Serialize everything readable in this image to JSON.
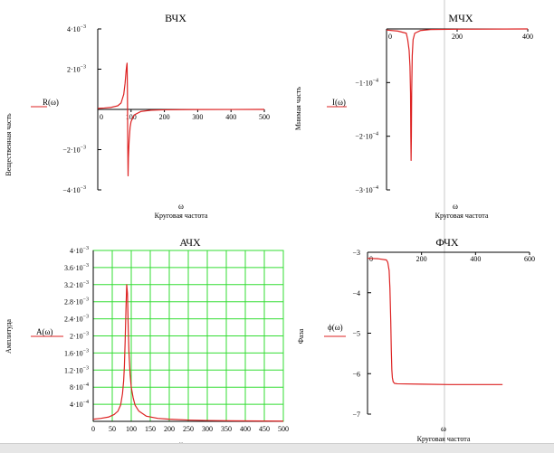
{
  "colors": {
    "curve": "#dd2222",
    "grid": "#33dd33",
    "axis": "#000000",
    "divider": "#c8c8c8"
  },
  "chart_data": [
    {
      "id": "vchx",
      "type": "line",
      "title": "ВЧХ",
      "xlabel": "Круговая частота",
      "xvar": "ω",
      "ylabel": "Вещественная часть",
      "legend": "R(ω)",
      "xlim": [
        0,
        500
      ],
      "ylim": [
        -0.004,
        0.004
      ],
      "x_ticks": [
        "0",
        "100",
        "200",
        "300",
        "400",
        "500"
      ],
      "y_ticks": [
        {
          "v": 0.004,
          "m": "4·10",
          "e": "−3"
        },
        {
          "v": 0.002,
          "m": "2·10",
          "e": "−3"
        },
        {
          "v": -0.002,
          "m": "−2·10",
          "e": "−3"
        },
        {
          "v": -0.004,
          "m": "−4·10",
          "e": "−3"
        }
      ],
      "grid": false,
      "series": [
        {
          "x": [
            0,
            20,
            40,
            60,
            70,
            78,
            82,
            85,
            87,
            88,
            89,
            90,
            91,
            92,
            94,
            97,
            100,
            110,
            130,
            160,
            200,
            250,
            300,
            400,
            500
          ],
          "y": [
            5e-05,
            7e-05,
            0.0001,
            0.00018,
            0.00032,
            0.00075,
            0.0013,
            0.0019,
            0.0022,
            0.0023,
            0.001,
            -0.0018,
            -0.0033,
            -0.0024,
            -0.0016,
            -0.0009,
            -0.0006,
            -0.00027,
            -0.0001,
            -4e-05,
            -2e-05,
            -1e-05,
            -5e-06,
            -2e-06,
            -1e-06
          ]
        }
      ]
    },
    {
      "id": "mchx",
      "type": "line",
      "title": "МЧХ",
      "xlabel": "Круговая частота",
      "xvar": "ω",
      "ylabel": "Мнимая часть",
      "legend": "I(ω)",
      "xlim": [
        0,
        500
      ],
      "ylim": [
        -0.0003,
        0
      ],
      "x_ticks": [
        "0",
        "200",
        "400"
      ],
      "y_ticks": [
        {
          "v": -0.0001,
          "m": "−1·10",
          "e": "−4"
        },
        {
          "v": -0.0002,
          "m": "−2·10",
          "e": "−4"
        },
        {
          "v": -0.0003,
          "m": "−3·10",
          "e": "−4"
        }
      ],
      "grid": false,
      "series": [
        {
          "x": [
            0,
            40,
            70,
            75,
            80,
            83,
            85,
            86,
            87,
            88,
            89,
            91,
            94,
            100,
            120,
            160,
            250,
            500
          ],
          "y": [
            -2e-06,
            -4e-06,
            -8e-06,
            -2e-05,
            -4e-05,
            -7e-05,
            -0.00012,
            -0.0002,
            -0.000245,
            -0.0002,
            -0.00012,
            -5e-05,
            -2e-05,
            -8e-06,
            -3e-06,
            -1e-06,
            -5e-07,
            0
          ]
        }
      ]
    },
    {
      "id": "achx",
      "type": "line",
      "title": "АЧХ",
      "xlabel": "",
      "xvar": "ω",
      "ylabel": "Амплитуда",
      "legend": "A(ω)",
      "xlim": [
        0,
        500
      ],
      "ylim": [
        0,
        0.004
      ],
      "x_ticks": [
        "0",
        "50",
        "100",
        "150",
        "200",
        "250",
        "300",
        "350",
        "400",
        "450",
        "500"
      ],
      "y_ticks": [
        {
          "v": 0.004,
          "m": "4·10",
          "e": "−3"
        },
        {
          "v": 0.0036,
          "m": "3.6·10",
          "e": "−3"
        },
        {
          "v": 0.0032,
          "m": "3.2·10",
          "e": "−3"
        },
        {
          "v": 0.0028,
          "m": "2.8·10",
          "e": "−3"
        },
        {
          "v": 0.0024,
          "m": "2.4·10",
          "e": "−3"
        },
        {
          "v": 0.002,
          "m": "2·10",
          "e": "−3"
        },
        {
          "v": 0.0016,
          "m": "1.6·10",
          "e": "−3"
        },
        {
          "v": 0.0012,
          "m": "1.2·10",
          "e": "−3"
        },
        {
          "v": 0.0008,
          "m": "8·10",
          "e": "−4"
        },
        {
          "v": 0.0004,
          "m": "4·10",
          "e": "−4"
        }
      ],
      "grid": true,
      "series": [
        {
          "x": [
            0,
            20,
            40,
            55,
            65,
            72,
            77,
            80,
            82,
            84,
            86,
            88,
            90,
            92,
            94,
            97,
            100,
            105,
            110,
            120,
            140,
            170,
            200,
            250,
            300,
            400,
            500
          ],
          "y": [
            5e-05,
            7e-05,
            0.0001,
            0.00016,
            0.00024,
            0.00038,
            0.00065,
            0.00095,
            0.0013,
            0.0019,
            0.0026,
            0.0032,
            0.003,
            0.0022,
            0.0016,
            0.0011,
            0.0008,
            0.00055,
            0.00038,
            0.00024,
            0.00012,
            7e-05,
            5e-05,
            3e-05,
            2e-05,
            1e-05,
            5e-06
          ]
        }
      ]
    },
    {
      "id": "fchx",
      "type": "line",
      "title": "ФЧХ",
      "xlabel": "Круговая частота",
      "xvar": "ω",
      "ylabel": "Фаза",
      "legend": "ϕ(ω)",
      "xlim": [
        0,
        600
      ],
      "ylim": [
        -7,
        -3
      ],
      "x_ticks": [
        "0",
        "200",
        "400",
        "600"
      ],
      "y_ticks": [
        {
          "v": -3,
          "m": "−3",
          "e": ""
        },
        {
          "v": -4,
          "m": "−4",
          "e": ""
        },
        {
          "v": -5,
          "m": "−5",
          "e": ""
        },
        {
          "v": -6,
          "m": "−6",
          "e": ""
        },
        {
          "v": -7,
          "m": "−7",
          "e": ""
        }
      ],
      "grid": false,
      "series": [
        {
          "x": [
            0,
            40,
            70,
            75,
            80,
            83,
            86,
            88,
            90,
            92,
            95,
            100,
            110,
            200,
            300,
            400,
            500
          ],
          "y": [
            -3.15,
            -3.16,
            -3.19,
            -3.25,
            -3.45,
            -3.9,
            -4.7,
            -5.4,
            -5.9,
            -6.1,
            -6.2,
            -6.24,
            -6.25,
            -6.26,
            -6.27,
            -6.27,
            -6.27
          ]
        }
      ]
    }
  ]
}
